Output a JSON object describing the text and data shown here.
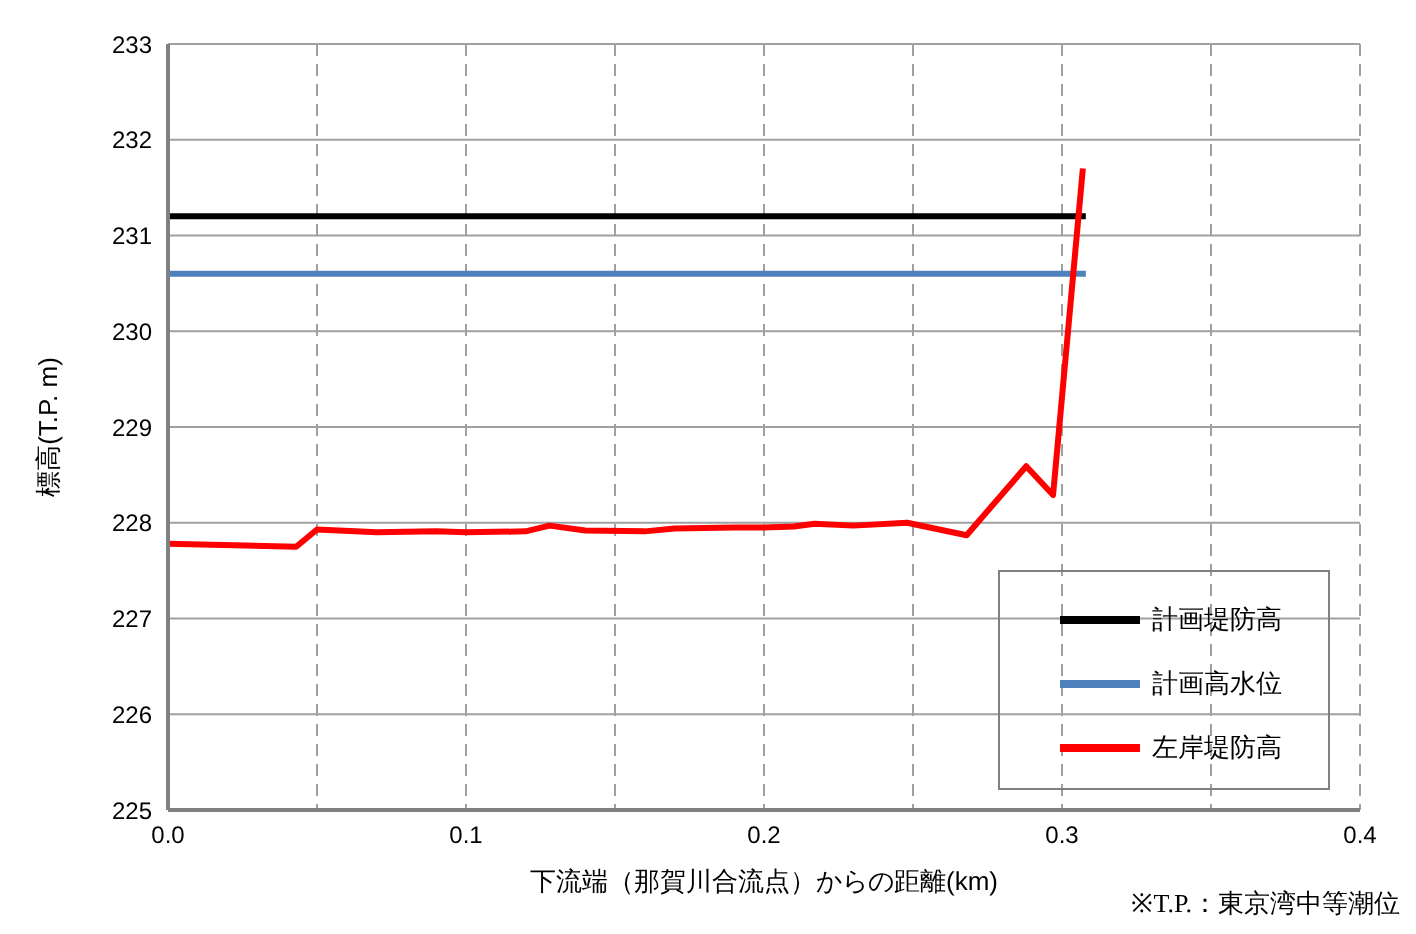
{
  "chart_data": {
    "type": "line",
    "xlabel": "下流端（那賀川合流点）からの距離(km)",
    "ylabel": "標高(T.P. m)",
    "xlim": [
      0,
      0.4
    ],
    "ylim": [
      225,
      233
    ],
    "xticks": [
      {
        "value": 0,
        "label": "0.0"
      },
      {
        "value": 0.05,
        "label": null
      },
      {
        "value": 0.1,
        "label": "0.1"
      },
      {
        "value": 0.15,
        "label": null
      },
      {
        "value": 0.2,
        "label": "0.2"
      },
      {
        "value": 0.25,
        "label": null
      },
      {
        "value": 0.3,
        "label": "0.3"
      },
      {
        "value": 0.35,
        "label": null
      },
      {
        "value": 0.4,
        "label": "0.4"
      }
    ],
    "yticks": [
      225,
      226,
      227,
      228,
      229,
      230,
      231,
      232,
      233
    ],
    "grid": true,
    "legend": "bottom right",
    "marker": "none",
    "line_style": "solid",
    "annotations": [
      "※T.P.：東京湾中等潮位"
    ],
    "series": [
      {
        "name": "計画堤防高",
        "color": "#000000",
        "x": [
          0,
          0.308
        ],
        "values": [
          231.2,
          231.2
        ]
      },
      {
        "name": "計画高水位",
        "color": "#4f81bd",
        "x": [
          0,
          0.308
        ],
        "values": [
          230.6,
          230.6
        ]
      },
      {
        "name": "左岸堤防高",
        "color": "#ff0000",
        "x": [
          0,
          0.043,
          0.05,
          0.07,
          0.09,
          0.1,
          0.12,
          0.128,
          0.14,
          0.16,
          0.17,
          0.19,
          0.2,
          0.21,
          0.217,
          0.23,
          0.248,
          0.268,
          0.288,
          0.297,
          0.307
        ],
        "values": [
          227.78,
          227.75,
          227.93,
          227.9,
          227.91,
          227.9,
          227.91,
          227.97,
          227.92,
          227.91,
          227.94,
          227.95,
          227.95,
          227.96,
          227.99,
          227.97,
          228.0,
          227.87,
          228.59,
          228.29,
          231.7
        ]
      }
    ]
  }
}
